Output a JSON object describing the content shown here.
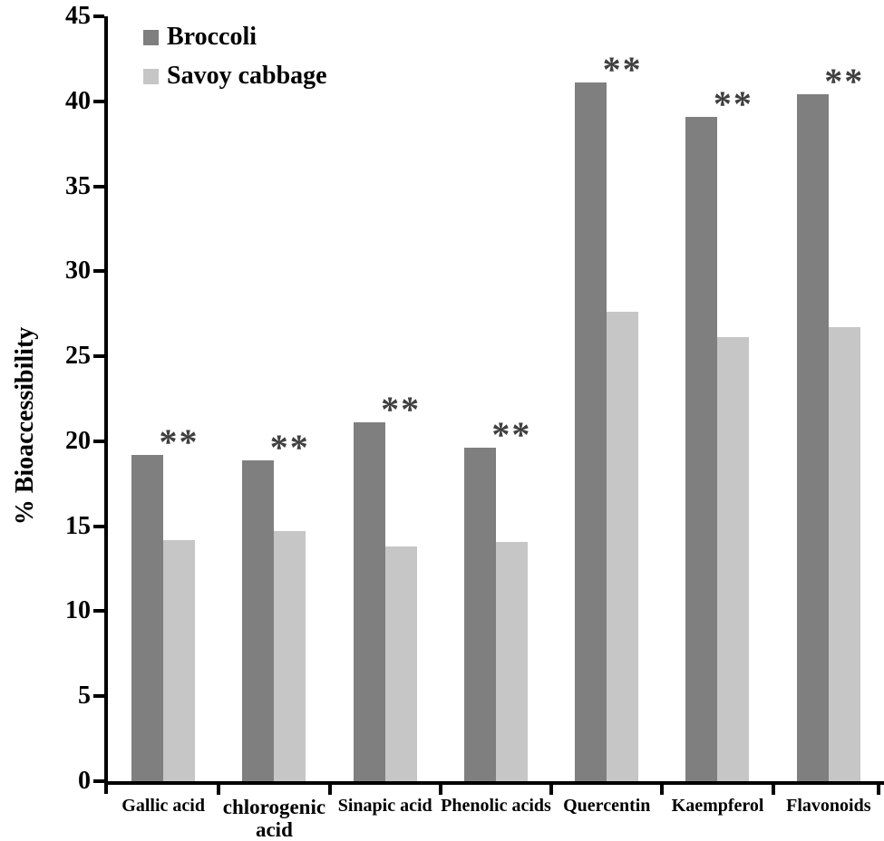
{
  "chart_data": {
    "type": "bar",
    "title": "",
    "xlabel": "",
    "ylabel": "% Bioaccessibility",
    "ylim": [
      0,
      45
    ],
    "yticks": [
      0,
      5,
      10,
      15,
      20,
      25,
      30,
      35,
      40,
      45
    ],
    "grid": false,
    "legend_position": "top-left-inside",
    "categories": [
      "Gallic acid",
      "chlorogenic acid",
      "Sinapic acid",
      "Phenolic acids",
      "Quercentin",
      "Kaempferol",
      "Flavonoids"
    ],
    "series": [
      {
        "name": "Broccoli",
        "color": "#7f7f7f",
        "values": [
          19.2,
          18.9,
          21.1,
          19.6,
          41.1,
          39.1,
          40.4
        ]
      },
      {
        "name": "Savoy cabbage",
        "color": "#c6c6c6",
        "values": [
          14.2,
          14.7,
          13.8,
          14.1,
          27.6,
          26.1,
          26.7
        ]
      }
    ],
    "significance_marker": "**",
    "significance_per_category": [
      true,
      true,
      true,
      true,
      true,
      true,
      true
    ],
    "marker_color": "#3f3f3f",
    "axis_color": "#000000"
  }
}
